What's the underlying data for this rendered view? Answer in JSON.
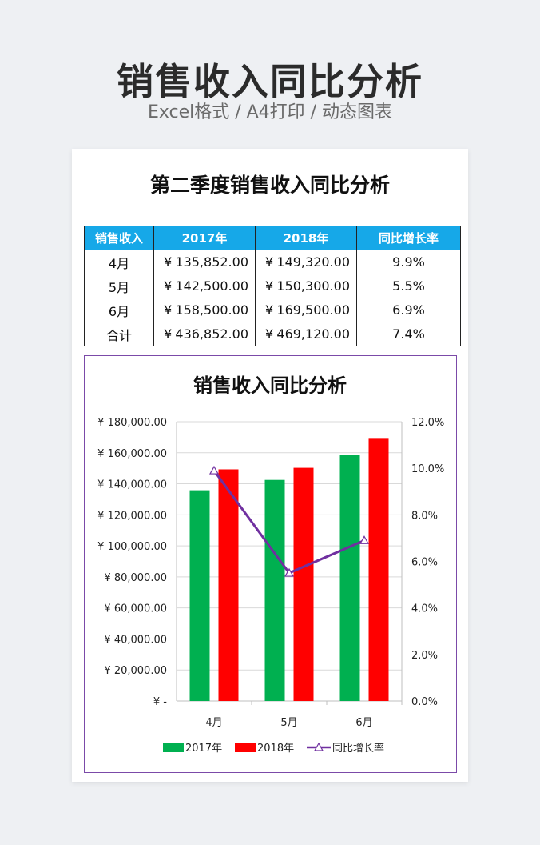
{
  "page": {
    "title": "销售收入同比分析",
    "subtitle": "Excel格式 / A4打印 / 动态图表"
  },
  "card": {
    "title": "第二季度销售收入同比分析"
  },
  "table": {
    "headers": [
      "销售收入",
      "2017年",
      "2018年",
      "同比增长率"
    ],
    "currency_symbol": "¥",
    "rows": [
      {
        "label": "4月",
        "v2017": "135,852.00",
        "v2018": "149,320.00",
        "growth": "9.9%"
      },
      {
        "label": "5月",
        "v2017": "142,500.00",
        "v2018": "150,300.00",
        "growth": "5.5%"
      },
      {
        "label": "6月",
        "v2017": "158,500.00",
        "v2018": "169,500.00",
        "growth": "6.9%"
      },
      {
        "label": "合计",
        "v2017": "436,852.00",
        "v2018": "469,120.00",
        "growth": "7.4%"
      }
    ]
  },
  "colors": {
    "header_bg": "#16a8e8",
    "series_2017": "#00b050",
    "series_2018": "#ff0000",
    "series_growth": "#7030a0",
    "chart_border": "#7b4aa8"
  },
  "chart_data": {
    "type": "bar",
    "title": "销售收入同比分析",
    "categories": [
      "4月",
      "5月",
      "6月"
    ],
    "series": [
      {
        "name": "2017年",
        "type": "bar",
        "axis": "left",
        "values": [
          135852,
          142500,
          158500
        ]
      },
      {
        "name": "2018年",
        "type": "bar",
        "axis": "left",
        "values": [
          149320,
          150300,
          169500
        ]
      },
      {
        "name": "同比增长率",
        "type": "line",
        "axis": "right",
        "values": [
          0.099,
          0.055,
          0.069
        ]
      }
    ],
    "y_left": {
      "range": [
        0,
        180000
      ],
      "ticks": [
        0,
        20000,
        40000,
        60000,
        80000,
        100000,
        120000,
        140000,
        160000,
        180000
      ],
      "tick_labels": [
        "¥ -",
        "¥ 20,000.00",
        "¥ 40,000.00",
        "¥ 60,000.00",
        "¥ 80,000.00",
        "¥ 100,000.00",
        "¥ 120,000.00",
        "¥ 140,000.00",
        "¥ 160,000.00",
        "¥ 180,000.00"
      ]
    },
    "y_right": {
      "range": [
        0,
        0.12
      ],
      "ticks": [
        0,
        0.02,
        0.04,
        0.06,
        0.08,
        0.1,
        0.12
      ],
      "tick_labels": [
        "0.0%",
        "2.0%",
        "4.0%",
        "6.0%",
        "8.0%",
        "10.0%",
        "12.0%"
      ]
    },
    "grid": true,
    "legend": "bottom"
  }
}
